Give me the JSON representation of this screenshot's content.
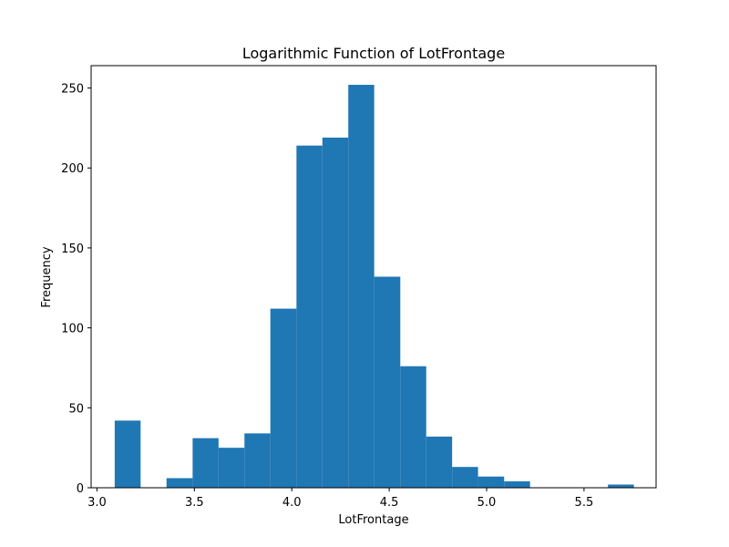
{
  "chart_data": {
    "type": "bar",
    "title": "Logarithmic Function of LotFrontage",
    "xlabel": "LotFrontage",
    "ylabel": "Frequency",
    "xlim": [
      2.97,
      5.87
    ],
    "ylim": [
      0,
      264
    ],
    "xticks": [
      3.0,
      3.5,
      4.0,
      4.5,
      5.0,
      5.5
    ],
    "xtick_labels": [
      "3.0",
      "3.5",
      "4.0",
      "4.5",
      "5.0",
      "5.5"
    ],
    "yticks": [
      0,
      50,
      100,
      150,
      200,
      250
    ],
    "ytick_labels": [
      "0",
      "50",
      "100",
      "150",
      "200",
      "250"
    ],
    "bin_edges": [
      3.091,
      3.224,
      3.357,
      3.491,
      3.624,
      3.757,
      3.89,
      4.024,
      4.157,
      4.29,
      4.423,
      4.557,
      4.69,
      4.823,
      4.956,
      5.09,
      5.223,
      5.356,
      5.489,
      5.623,
      5.756
    ],
    "values": [
      42,
      0,
      6,
      31,
      25,
      34,
      112,
      214,
      219,
      252,
      132,
      76,
      32,
      13,
      7,
      4,
      0,
      0,
      0,
      2
    ],
    "bar_color": "#1f77b4"
  }
}
